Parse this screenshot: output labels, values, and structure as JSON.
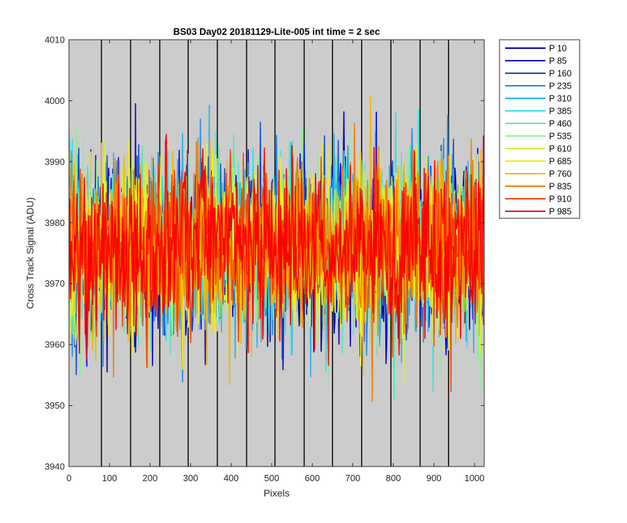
{
  "chart_data": {
    "type": "line",
    "title": "BS03 Day02 20181129-Lite-005 int time = 2 sec",
    "xlabel": "Pixels",
    "ylabel": "Cross Track Signal (ADU)",
    "xlim": [
      0,
      1024
    ],
    "ylim": [
      3940,
      4010
    ],
    "xticks": [
      0,
      100,
      200,
      300,
      400,
      500,
      600,
      700,
      800,
      900,
      1000
    ],
    "yticks": [
      3940,
      3950,
      3960,
      3970,
      3980,
      3990,
      4000,
      4010
    ],
    "x_tick_labels": [
      "0",
      "100",
      "200",
      "300",
      "400",
      "500",
      "600",
      "700",
      "800",
      "900",
      "1000"
    ],
    "y_tick_labels": [
      "3940",
      "3950",
      "3960",
      "3970",
      "3980",
      "3990",
      "4000",
      "4010"
    ],
    "vertical_lines": [
      80,
      152,
      224,
      294,
      366,
      438,
      508,
      580,
      650,
      722,
      794,
      866,
      936
    ],
    "grid": false,
    "plot_background": "#cccccc",
    "legend_position": "outside-top-right",
    "series_model": {
      "mean": 3976,
      "spread_sd": 7,
      "typical_min": 3947,
      "typical_max": 4009
    },
    "series": [
      {
        "name": "P 10",
        "color": "#0000aa"
      },
      {
        "name": "P 85",
        "color": "#0000dd"
      },
      {
        "name": "P 160",
        "color": "#0a49cc"
      },
      {
        "name": "P 235",
        "color": "#1f88e8"
      },
      {
        "name": "P 310",
        "color": "#23b4ec"
      },
      {
        "name": "P 385",
        "color": "#2ee3e3"
      },
      {
        "name": "P 460",
        "color": "#55e8b9"
      },
      {
        "name": "P 535",
        "color": "#8ef08c"
      },
      {
        "name": "P 610",
        "color": "#cff044"
      },
      {
        "name": "P 685",
        "color": "#f2ee14"
      },
      {
        "name": "P 760",
        "color": "#f2b700"
      },
      {
        "name": "P 835",
        "color": "#f27e00"
      },
      {
        "name": "P 910",
        "color": "#f24400"
      },
      {
        "name": "P 985",
        "color": "#ff0000"
      }
    ]
  }
}
